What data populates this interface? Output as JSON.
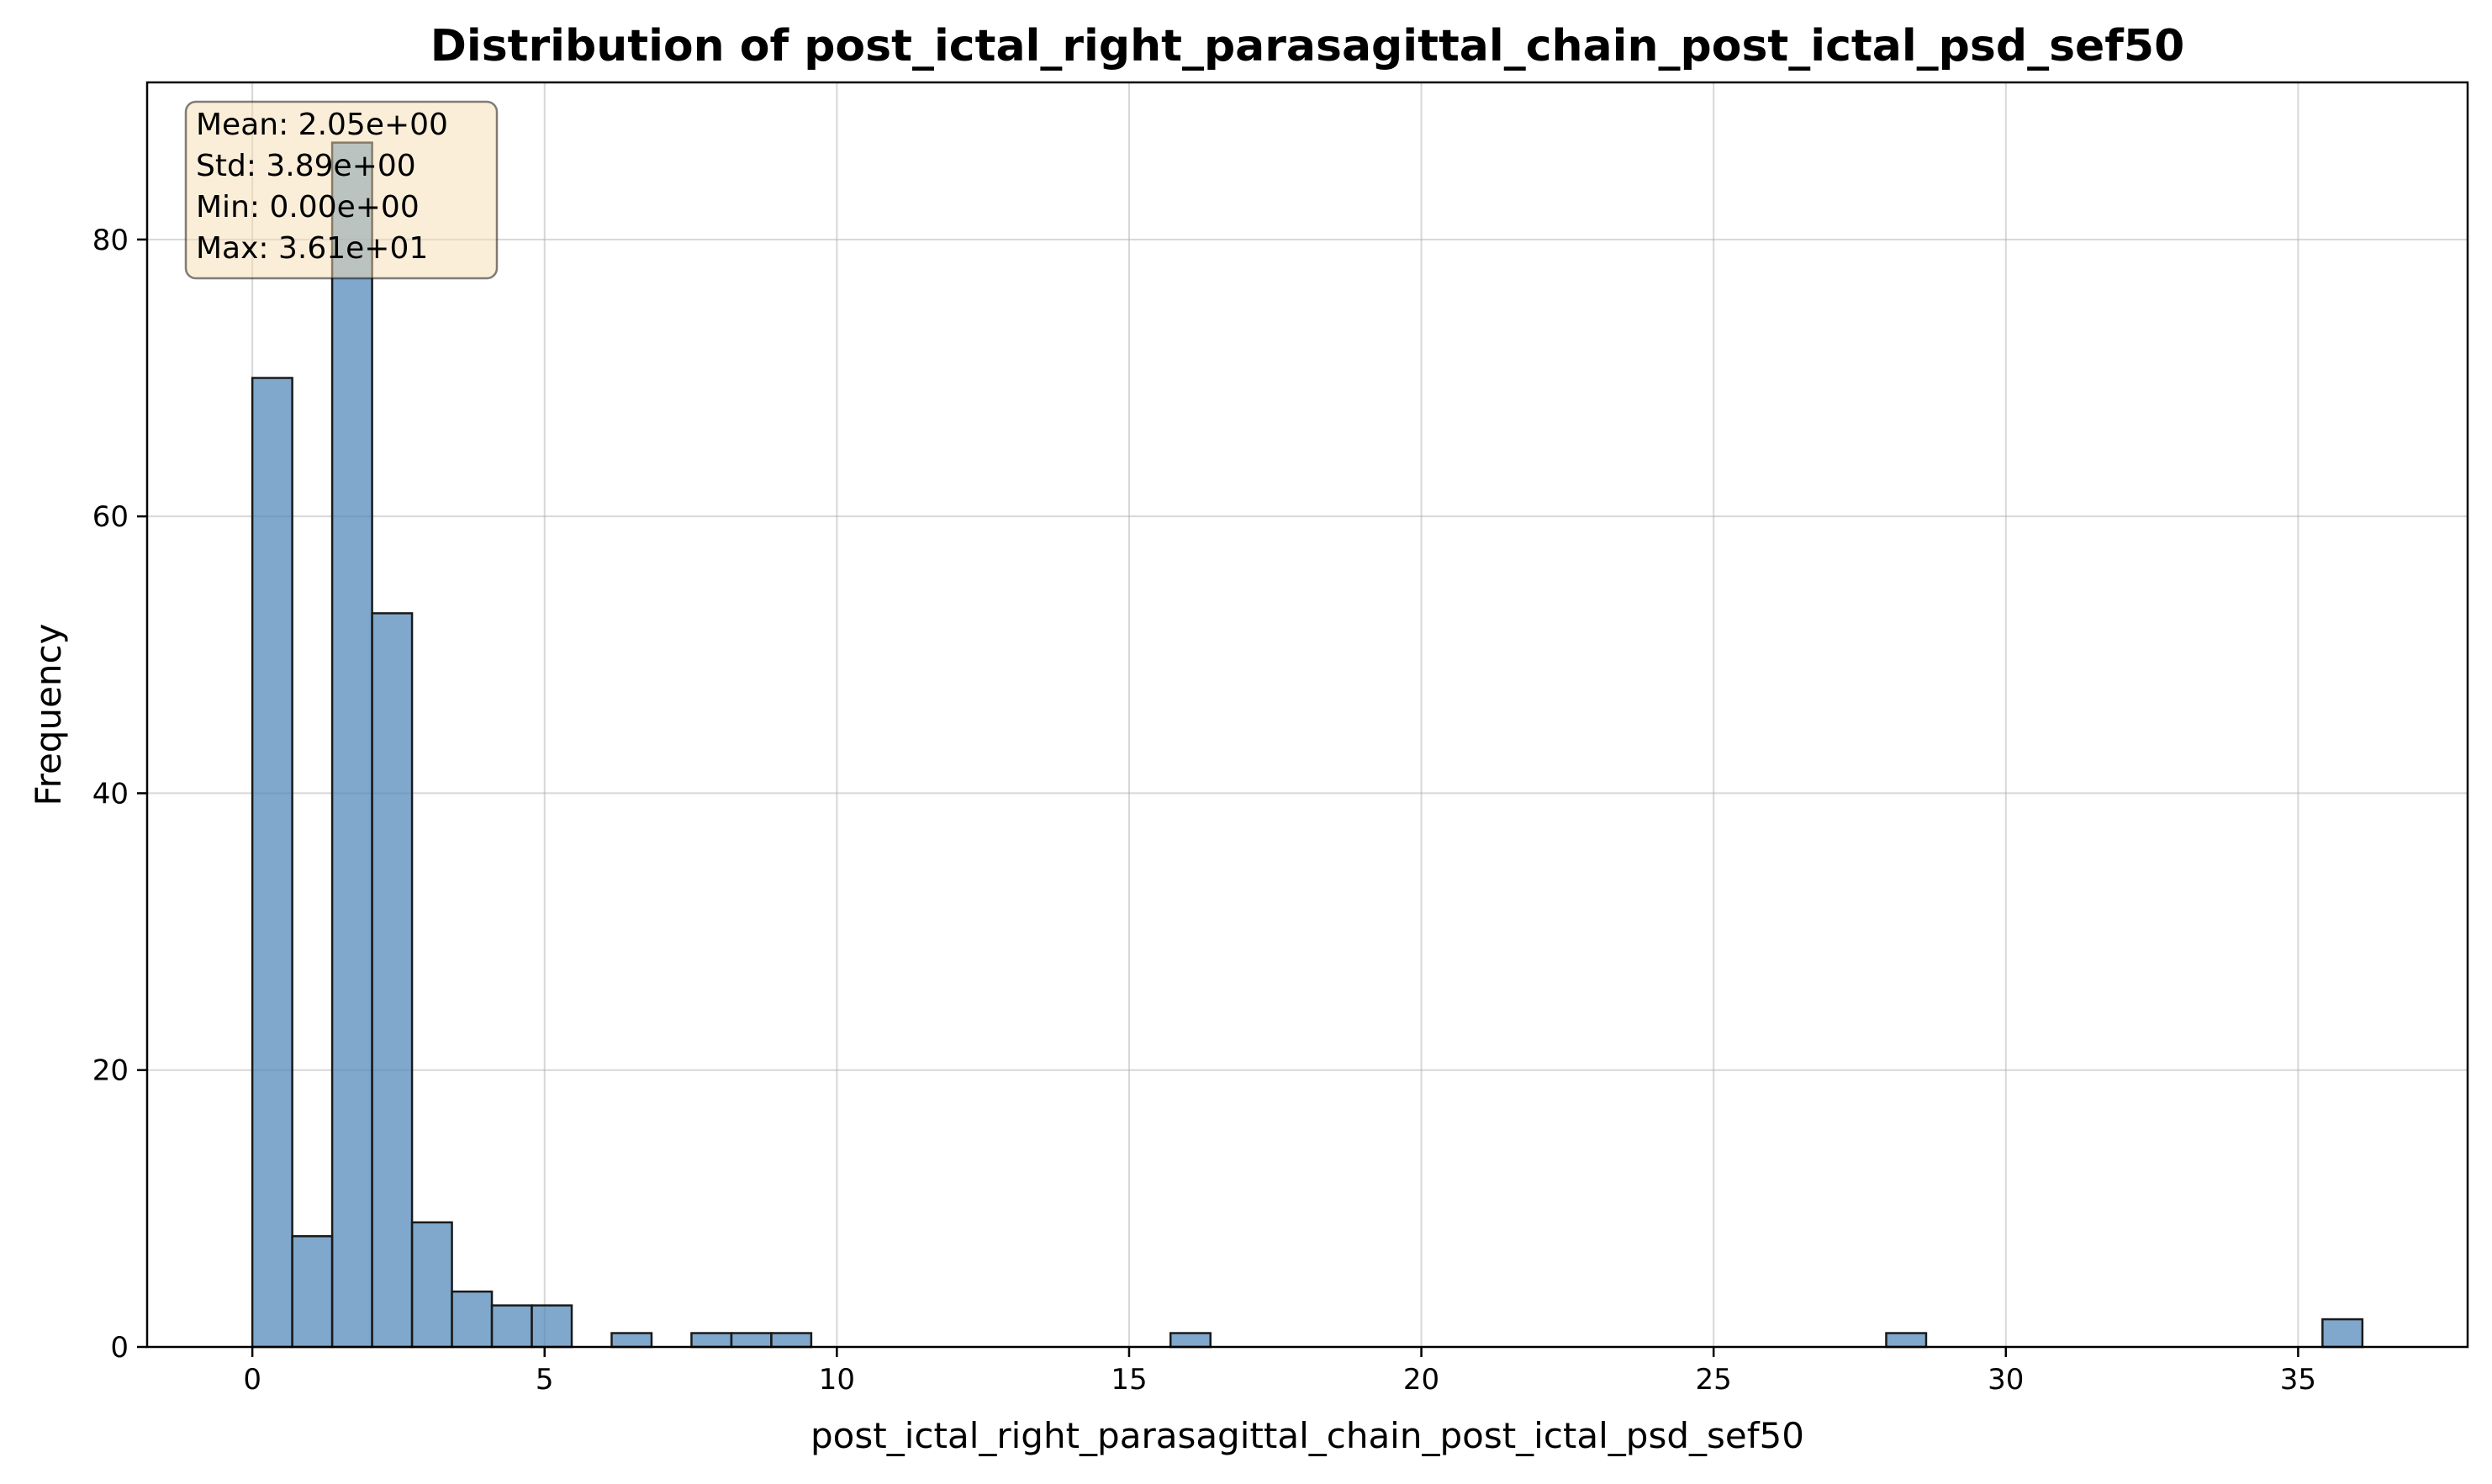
{
  "chart_data": {
    "type": "bar",
    "title": "Distribution of post_ictal_right_parasagittal_chain_post_ictal_psd_sef50",
    "xlabel": "post_ictal_right_parasagittal_chain_post_ictal_psd_sef50",
    "ylabel": "Frequency",
    "xlim": [
      -1.8,
      37.9
    ],
    "ylim": [
      0,
      91.35
    ],
    "xticks": [
      0,
      5,
      10,
      15,
      20,
      25,
      30,
      35
    ],
    "yticks": [
      0,
      20,
      40,
      60,
      80
    ],
    "grid": true,
    "bar_color": "#4f86b8",
    "bar_edge_color": "#1a1a1a",
    "bins": [
      {
        "x0": 0.0,
        "x1": 0.683,
        "count": 70
      },
      {
        "x0": 0.683,
        "x1": 1.366,
        "count": 8
      },
      {
        "x0": 1.366,
        "x1": 2.049,
        "count": 87
      },
      {
        "x0": 2.049,
        "x1": 2.732,
        "count": 53
      },
      {
        "x0": 2.732,
        "x1": 3.415,
        "count": 9
      },
      {
        "x0": 3.415,
        "x1": 4.098,
        "count": 4
      },
      {
        "x0": 4.098,
        "x1": 4.781,
        "count": 3
      },
      {
        "x0": 4.781,
        "x1": 5.464,
        "count": 3
      },
      {
        "x0": 6.147,
        "x1": 6.83,
        "count": 1
      },
      {
        "x0": 7.513,
        "x1": 8.196,
        "count": 1
      },
      {
        "x0": 8.196,
        "x1": 8.879,
        "count": 1
      },
      {
        "x0": 8.879,
        "x1": 9.562,
        "count": 1
      },
      {
        "x0": 15.709,
        "x1": 16.392,
        "count": 1
      },
      {
        "x0": 27.953,
        "x1": 28.636,
        "count": 1
      },
      {
        "x0": 35.417,
        "x1": 36.1,
        "count": 2
      }
    ],
    "stats": {
      "mean": "Mean: 2.05e+00",
      "std": "Std: 3.89e+00",
      "min": "Min: 0.00e+00",
      "max": "Max: 3.61e+01"
    }
  }
}
